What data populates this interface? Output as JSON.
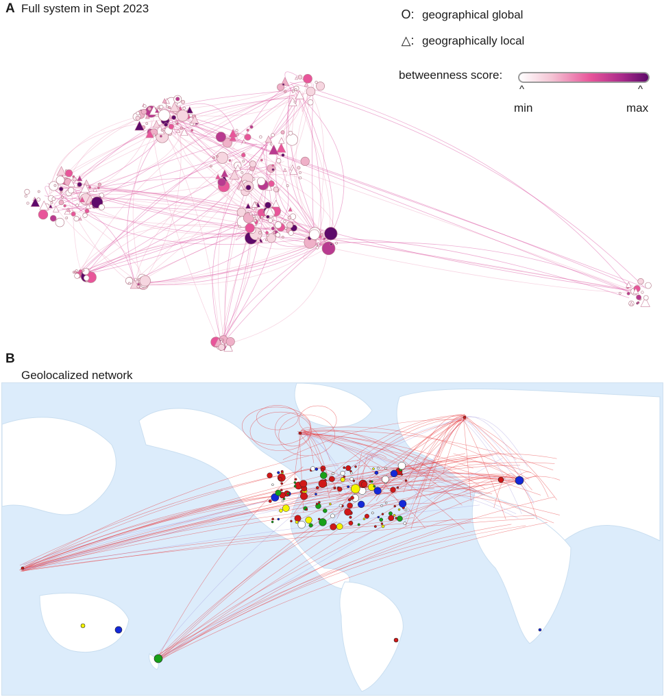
{
  "panel_a": {
    "letter": "A",
    "title": "Full system in Sept 2023",
    "legend": {
      "global_symbol": "O:",
      "global_label": "geographical global",
      "local_symbol": "△:",
      "local_label": "geographically local",
      "score_label": "betweenness score:",
      "caret": "^",
      "min_label": "min",
      "max_label": "max"
    }
  },
  "panel_b": {
    "letter": "B",
    "title": "Geolocalized network"
  },
  "colors": {
    "score_min": "#ffffff",
    "score_mid": "#e8559a",
    "score_max": "#5e0a6a",
    "map_ocean": "#dcecfb",
    "map_land": "#ffffff",
    "edge_red": "#e8393c",
    "node_red": "#d01818",
    "node_blue": "#1428d8",
    "node_green": "#18a018",
    "node_yellow": "#f4f400"
  }
}
